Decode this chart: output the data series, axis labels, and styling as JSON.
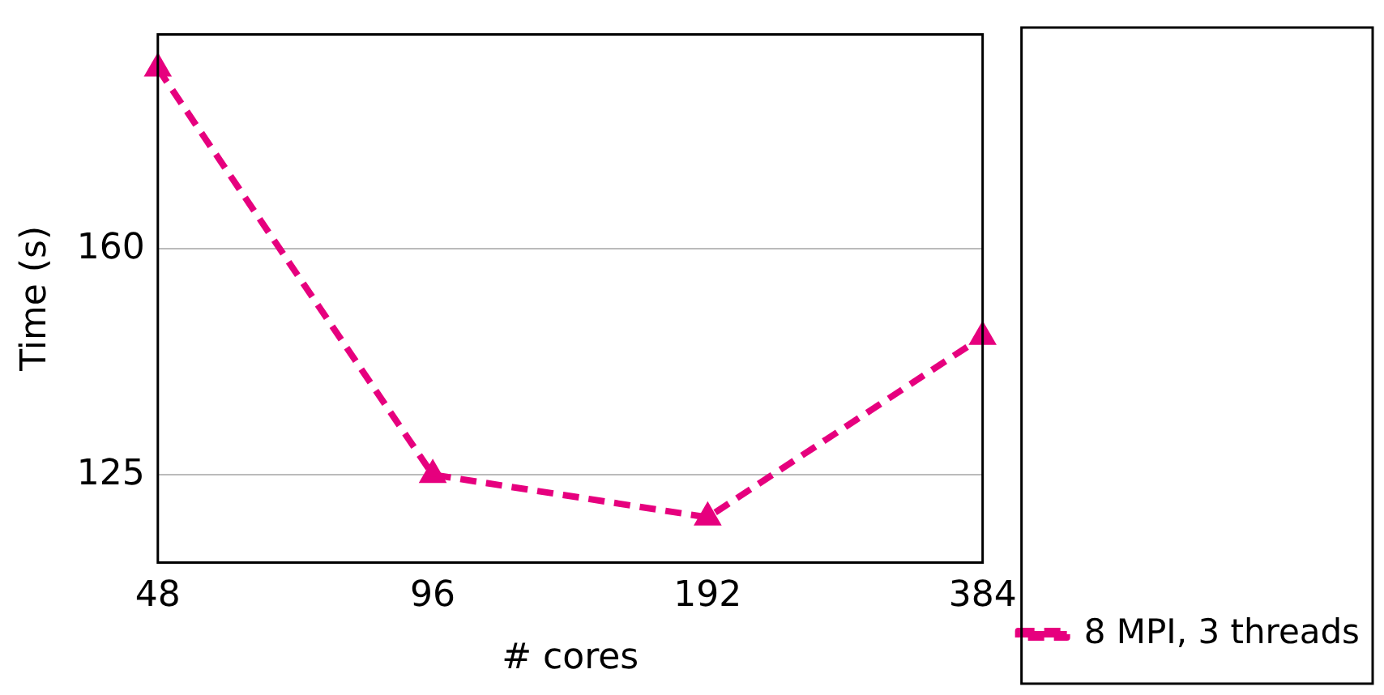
{
  "chart_data": {
    "type": "line",
    "xlabel": "# cores",
    "ylabel": "Time (s)",
    "categories": [
      "48",
      "96",
      "192",
      "384"
    ],
    "series": [
      {
        "name": "8 MPI, 3 threads",
        "color": "#e6007e",
        "values": [
          188,
          125,
          118.4,
          146.4
        ]
      }
    ],
    "ylim": [
      111.4,
      193.3
    ],
    "yticks": [
      125,
      160
    ],
    "grid": "y",
    "legend": "right",
    "marker": "triangle",
    "line_style": "dashed"
  }
}
